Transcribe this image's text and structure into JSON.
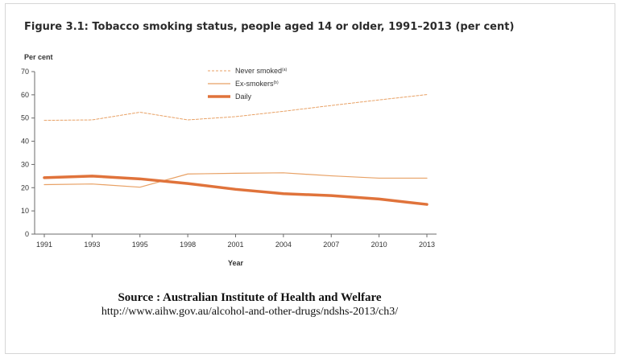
{
  "chart_data": {
    "type": "line",
    "title": "Figure 3.1: Tobacco smoking status, people aged 14 or older, 1991–2013 (per cent)",
    "ylabel": "Per cent",
    "xlabel": "Year",
    "categories": [
      "1991",
      "1993",
      "1995",
      "1998",
      "2001",
      "2004",
      "2007",
      "2010",
      "2013"
    ],
    "ylim": [
      0,
      70
    ],
    "yticks": [
      0,
      10,
      20,
      30,
      40,
      50,
      60,
      70
    ],
    "grid": false,
    "legend_position": "top-center",
    "series": [
      {
        "name": "Never smoked",
        "superscript": "(a)",
        "style": "dashed",
        "color": "#e8a165",
        "values": [
          49.0,
          49.2,
          52.5,
          49.2,
          50.6,
          52.9,
          55.4,
          57.8,
          60.1
        ]
      },
      {
        "name": "Ex-smokers",
        "superscript": "(b)",
        "style": "thin",
        "color": "#e8a165",
        "values": [
          21.3,
          21.6,
          20.2,
          25.9,
          26.2,
          26.4,
          25.1,
          24.1,
          24.1
        ]
      },
      {
        "name": "Daily",
        "superscript": "",
        "style": "thick",
        "color": "#e0733b",
        "values": [
          24.3,
          25.0,
          23.8,
          21.8,
          19.3,
          17.4,
          16.6,
          15.1,
          12.8
        ]
      }
    ]
  },
  "source": {
    "label": "Source : Australian Institute of Health and Welfare",
    "url": "http://www.aihw.gov.au/alcohol-and-other-drugs/ndshs-2013/ch3/"
  }
}
